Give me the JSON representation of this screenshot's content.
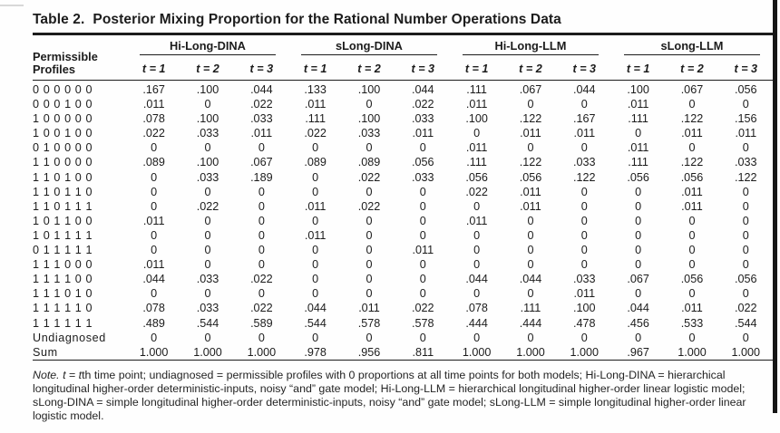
{
  "title": {
    "label": "Table 2.",
    "text": "Posterior Mixing Proportion for the Rational Number Operations Data"
  },
  "table": {
    "stub_header_line1": "Permissible",
    "stub_header_line2": "Profiles",
    "group_headers": [
      "Hi-Long-DINA",
      "sLong-DINA",
      "Hi-Long-LLM",
      "sLong-LLM"
    ],
    "time_headers": [
      "t = 1",
      "t = 2",
      "t = 3"
    ],
    "rows": [
      {
        "profile": "0 0 0 0 0 0",
        "values": [
          ".167",
          ".100",
          ".044",
          ".133",
          ".100",
          ".044",
          ".111",
          ".067",
          ".044",
          ".100",
          ".067",
          ".056"
        ]
      },
      {
        "profile": "0 0 0 1 0 0",
        "values": [
          ".011",
          "0",
          ".022",
          ".011",
          "0",
          ".022",
          ".011",
          "0",
          "0",
          ".011",
          "0",
          "0"
        ]
      },
      {
        "profile": "1 0 0 0 0 0",
        "values": [
          ".078",
          ".100",
          ".033",
          ".111",
          ".100",
          ".033",
          ".100",
          ".122",
          ".167",
          ".111",
          ".122",
          ".156"
        ]
      },
      {
        "profile": "1 0 0 1 0 0",
        "values": [
          ".022",
          ".033",
          ".011",
          ".022",
          ".033",
          ".011",
          "0",
          ".011",
          ".011",
          "0",
          ".011",
          ".011"
        ]
      },
      {
        "profile": "0 1 0 0 0 0",
        "values": [
          "0",
          "0",
          "0",
          "0",
          "0",
          "0",
          ".011",
          "0",
          "0",
          ".011",
          "0",
          "0"
        ]
      },
      {
        "profile": "1 1 0 0 0 0",
        "values": [
          ".089",
          ".100",
          ".067",
          ".089",
          ".089",
          ".056",
          ".111",
          ".122",
          ".033",
          ".111",
          ".122",
          ".033"
        ]
      },
      {
        "profile": "1 1 0 1 0 0",
        "values": [
          "0",
          ".033",
          ".189",
          "0",
          ".022",
          ".033",
          ".056",
          ".056",
          ".122",
          ".056",
          ".056",
          ".122"
        ]
      },
      {
        "profile": "1 1 0 1 1 0",
        "values": [
          "0",
          "0",
          "0",
          "0",
          "0",
          "0",
          ".022",
          ".011",
          "0",
          "0",
          ".011",
          "0"
        ]
      },
      {
        "profile": "1 1 0 1 1 1",
        "values": [
          "0",
          ".022",
          "0",
          ".011",
          ".022",
          "0",
          "0",
          ".011",
          "0",
          "0",
          ".011",
          "0"
        ]
      },
      {
        "profile": "1 0 1 1 0 0",
        "values": [
          ".011",
          "0",
          "0",
          "0",
          "0",
          "0",
          ".011",
          "0",
          "0",
          "0",
          "0",
          "0"
        ]
      },
      {
        "profile": "1 0 1 1 1 1",
        "values": [
          "0",
          "0",
          "0",
          ".011",
          "0",
          "0",
          "0",
          "0",
          "0",
          "0",
          "0",
          "0"
        ]
      },
      {
        "profile": "0 1 1 1 1 1",
        "values": [
          "0",
          "0",
          "0",
          "0",
          "0",
          ".011",
          "0",
          "0",
          "0",
          "0",
          "0",
          "0"
        ]
      },
      {
        "profile": "1 1 1 0 0 0",
        "values": [
          ".011",
          "0",
          "0",
          "0",
          "0",
          "0",
          "0",
          "0",
          "0",
          "0",
          "0",
          "0"
        ]
      },
      {
        "profile": "1 1 1 1 0 0",
        "values": [
          ".044",
          ".033",
          ".022",
          "0",
          "0",
          "0",
          ".044",
          ".044",
          ".033",
          ".067",
          ".056",
          ".056"
        ]
      },
      {
        "profile": "1 1 1 0 1 0",
        "values": [
          "0",
          "0",
          "0",
          "0",
          "0",
          "0",
          "0",
          "0",
          ".011",
          "0",
          "0",
          "0"
        ]
      },
      {
        "profile": "1 1 1 1 1 0",
        "values": [
          ".078",
          ".033",
          ".022",
          ".044",
          ".011",
          ".022",
          ".078",
          ".111",
          ".100",
          ".044",
          ".011",
          ".022"
        ]
      },
      {
        "profile": "1 1 1 1 1 1",
        "values": [
          ".489",
          ".544",
          ".589",
          ".544",
          ".578",
          ".578",
          ".444",
          ".444",
          ".478",
          ".456",
          ".533",
          ".544"
        ]
      },
      {
        "profile": "Undiagnosed",
        "values": [
          "0",
          "0",
          "0",
          "0",
          "0",
          "0",
          "0",
          "0",
          "0",
          "0",
          "0",
          "0"
        ]
      },
      {
        "profile": "Sum",
        "values": [
          "1.000",
          "1.000",
          "1.000",
          ".978",
          ".956",
          ".811",
          "1.000",
          "1.000",
          "1.000",
          ".967",
          "1.000",
          "1.000"
        ]
      }
    ]
  },
  "note": {
    "segments": [
      {
        "text": "Note. ",
        "italic": true
      },
      {
        "text": "t",
        "italic": true
      },
      {
        "text": " = ",
        "italic": false
      },
      {
        "text": "t",
        "italic": true
      },
      {
        "text": "th time point; undiagnosed = permissible profiles with 0 proportions at all time points for both models; Hi-Long-DINA = hierarchical longitudinal higher-order deterministic-inputs, noisy “and” gate model; Hi-Long-LLM = hierarchical longitudinal higher-order linear logistic model; sLong-DINA = simple longitudinal higher-order deterministic-inputs, noisy “and” gate model; sLong-LLM = simple longitudinal higher-order linear logistic model.",
        "italic": false
      }
    ]
  },
  "colors": {
    "text": "#1c1c1c",
    "rule": "#1c1c1c",
    "background": "#fefefe",
    "scan_bar": "#151515"
  }
}
